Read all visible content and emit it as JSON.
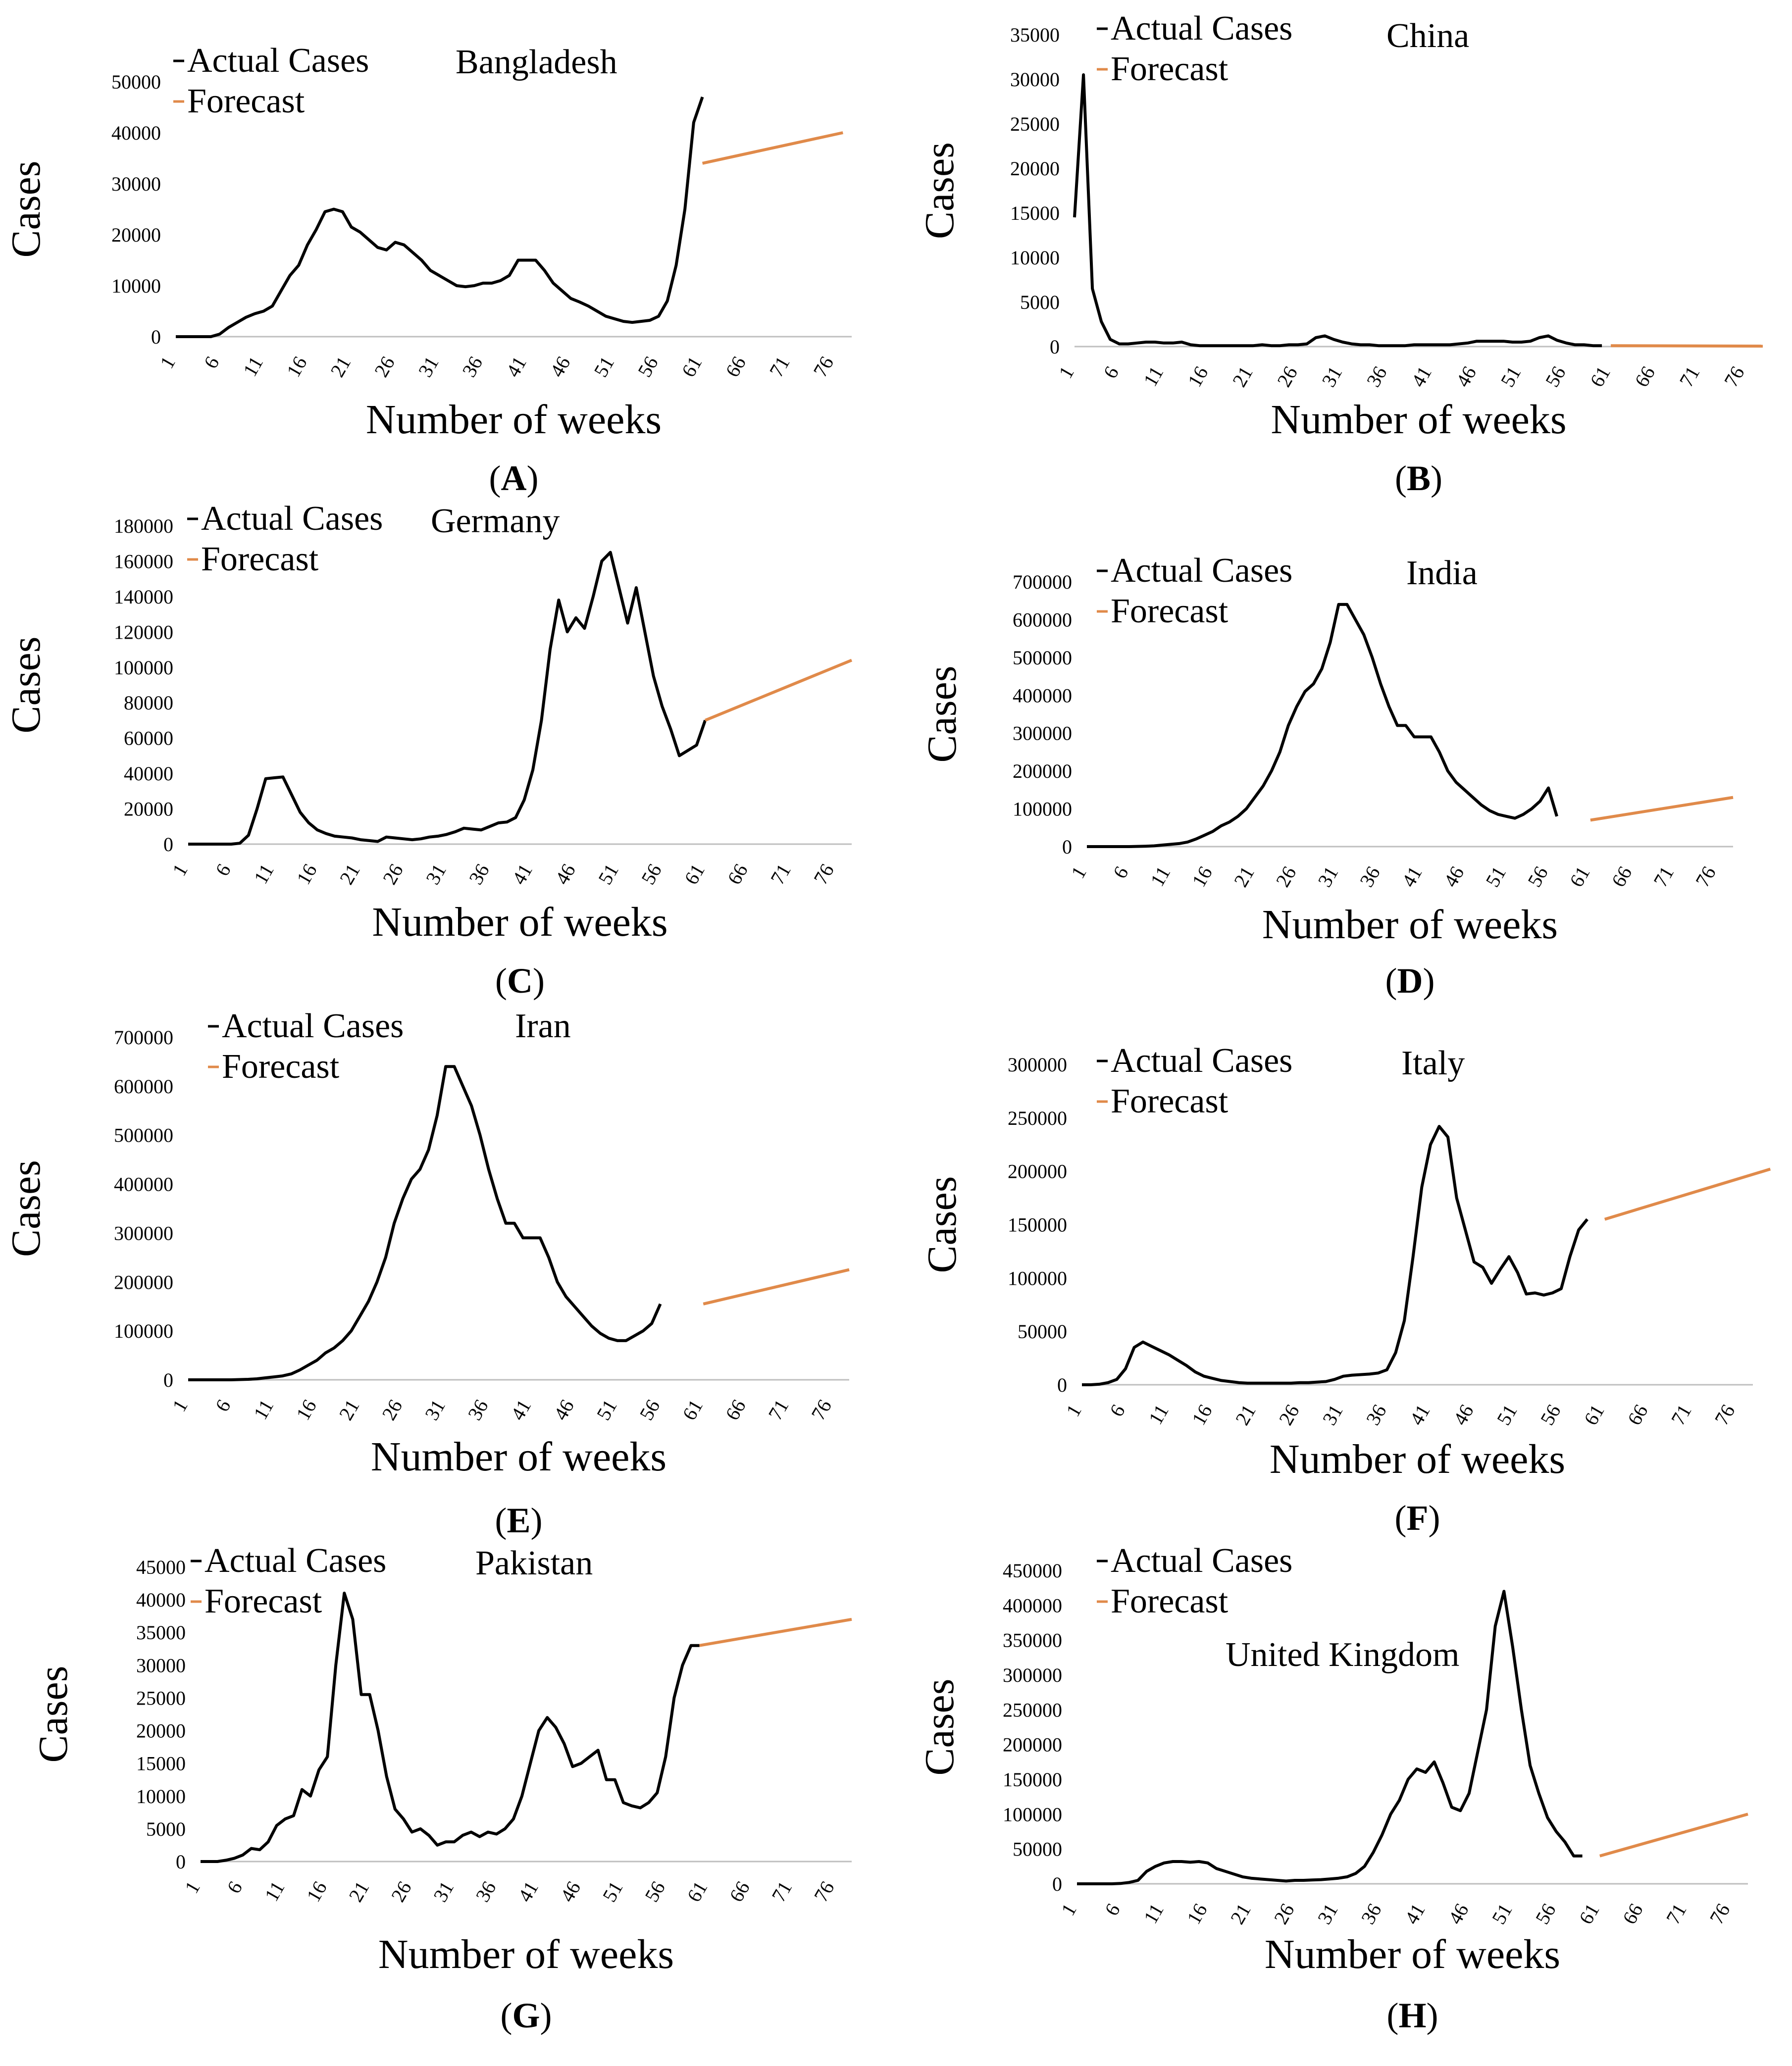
{
  "chart_data": [
    {
      "type": "line",
      "panel_label": "A",
      "title": "Bangladesh",
      "xlabel": "Number of weeks",
      "ylabel": "Cases",
      "ylim": [
        0,
        50000
      ],
      "yticks": [
        0,
        10000,
        20000,
        30000,
        40000,
        50000
      ],
      "xticks": [
        1,
        6,
        11,
        16,
        21,
        26,
        31,
        36,
        41,
        46,
        51,
        56,
        61,
        66,
        71,
        76
      ],
      "legend": [
        "Actual Cases",
        "Forecast"
      ],
      "colors": {
        "actual": "#000000",
        "forecast": "#E08A4A"
      },
      "series": [
        {
          "name": "Actual Cases",
          "x_start": 1,
          "values": [
            0,
            0,
            0,
            0,
            0,
            500,
            1800,
            2800,
            3800,
            4500,
            5000,
            6000,
            9000,
            12000,
            14000,
            18000,
            21000,
            24500,
            25000,
            24500,
            21500,
            20500,
            19000,
            17500,
            17000,
            18500,
            18000,
            16500,
            15000,
            13000,
            12000,
            11000,
            10000,
            9800,
            10000,
            10500,
            10500,
            11000,
            12000,
            15000,
            15000,
            15000,
            13000,
            10500,
            9000,
            7500,
            6800,
            6000,
            5000,
            4000,
            3500,
            3000,
            2800,
            3000,
            3200,
            4000,
            7000,
            14000,
            25000,
            42000,
            47000
          ]
        },
        {
          "name": "Forecast",
          "x_start": 61,
          "values": [
            34000,
            40000
          ],
          "x_end": 77
        }
      ]
    },
    {
      "type": "line",
      "panel_label": "B",
      "title": "China",
      "xlabel": "Number of weeks",
      "ylabel": "Cases",
      "ylim": [
        0,
        35000
      ],
      "yticks": [
        0,
        5000,
        10000,
        15000,
        20000,
        25000,
        30000,
        35000
      ],
      "xticks": [
        1,
        6,
        11,
        16,
        21,
        26,
        31,
        36,
        41,
        46,
        51,
        56,
        61,
        66,
        71,
        76
      ],
      "legend": [
        "Actual Cases",
        "Forecast"
      ],
      "colors": {
        "actual": "#000000",
        "forecast": "#E08A4A"
      },
      "series": [
        {
          "name": "Actual Cases",
          "x_start": 1,
          "values": [
            14500,
            30500,
            6500,
            2800,
            800,
            300,
            300,
            400,
            500,
            500,
            400,
            400,
            500,
            200,
            100,
            100,
            100,
            100,
            100,
            100,
            100,
            200,
            100,
            100,
            200,
            200,
            300,
            1000,
            1200,
            800,
            500,
            300,
            200,
            200,
            100,
            100,
            100,
            100,
            200,
            200,
            200,
            200,
            200,
            300,
            400,
            600,
            600,
            600,
            600,
            500,
            500,
            600,
            1000,
            1200,
            700,
            400,
            200,
            200,
            100,
            100
          ]
        },
        {
          "name": "Forecast",
          "x_start": 61,
          "values": [
            100,
            50
          ],
          "x_end": 78
        }
      ]
    },
    {
      "type": "line",
      "panel_label": "C",
      "title": "Germany",
      "xlabel": "Number of weeks",
      "ylabel": "Cases",
      "ylim": [
        0,
        180000
      ],
      "yticks": [
        0,
        20000,
        40000,
        60000,
        80000,
        100000,
        120000,
        140000,
        160000,
        180000
      ],
      "xticks": [
        1,
        6,
        11,
        16,
        21,
        26,
        31,
        36,
        41,
        46,
        51,
        56,
        61,
        66,
        71,
        76
      ],
      "legend": [
        "Actual Cases",
        "Forecast"
      ],
      "colors": {
        "actual": "#000000",
        "forecast": "#E08A4A"
      },
      "series": [
        {
          "name": "Actual Cases",
          "x_start": 1,
          "values": [
            0,
            0,
            0,
            0,
            0,
            0,
            500,
            5000,
            20000,
            37000,
            37500,
            38000,
            28000,
            18000,
            12000,
            8000,
            6000,
            4500,
            4000,
            3500,
            2500,
            2000,
            1500,
            4000,
            3500,
            3000,
            2500,
            3000,
            4000,
            4500,
            5500,
            7000,
            9000,
            8500,
            8000,
            10000,
            12000,
            12500,
            15000,
            25000,
            42000,
            70000,
            110000,
            138000,
            120000,
            128000,
            122000,
            140000,
            160000,
            165000,
            145000,
            125000,
            145000,
            120000,
            95000,
            78000,
            65000,
            50000,
            53000,
            56000,
            70000
          ]
        },
        {
          "name": "Forecast",
          "x_start": 61,
          "values": [
            70000,
            104000
          ],
          "x_end": 78
        }
      ]
    },
    {
      "type": "line",
      "panel_label": "D",
      "title": "India",
      "xlabel": "Number of weeks",
      "ylabel": "Cases",
      "ylim": [
        0,
        700000
      ],
      "yticks": [
        0,
        100000,
        200000,
        300000,
        400000,
        500000,
        600000,
        700000
      ],
      "xticks": [
        1,
        6,
        11,
        16,
        21,
        26,
        31,
        36,
        41,
        46,
        51,
        56,
        61,
        66,
        71,
        76
      ],
      "legend": [
        "Actual Cases",
        "Forecast"
      ],
      "colors": {
        "actual": "#000000",
        "forecast": "#E08A4A"
      },
      "series": [
        {
          "name": "Actual Cases",
          "x_start": 1,
          "values": [
            0,
            0,
            0,
            0,
            0,
            0,
            500,
            1000,
            2000,
            4000,
            6000,
            8000,
            12000,
            20000,
            30000,
            40000,
            55000,
            65000,
            80000,
            100000,
            130000,
            160000,
            200000,
            250000,
            320000,
            370000,
            410000,
            430000,
            470000,
            540000,
            640000,
            640000,
            600000,
            560000,
            500000,
            430000,
            370000,
            320000,
            320000,
            290000,
            290000,
            290000,
            250000,
            200000,
            170000,
            150000,
            130000,
            110000,
            95000,
            85000,
            80000,
            75000,
            85000,
            100000,
            120000,
            155000,
            80000
          ]
        },
        {
          "name": "Forecast",
          "x_start": 61,
          "values": [
            70000,
            130000
          ],
          "x_end": 78
        }
      ]
    },
    {
      "type": "line",
      "panel_label": "E",
      "title": "Iran",
      "xlabel": "Number of weeks",
      "ylabel": "Cases",
      "ylim": [
        0,
        700000
      ],
      "yticks": [
        0,
        100000,
        200000,
        300000,
        400000,
        500000,
        600000,
        700000
      ],
      "xticks": [
        1,
        6,
        11,
        16,
        21,
        26,
        31,
        36,
        41,
        46,
        51,
        56,
        61,
        66,
        71,
        76
      ],
      "legend": [
        "Actual Cases",
        "Forecast"
      ],
      "colors": {
        "actual": "#000000",
        "forecast": "#E08A4A"
      },
      "series": [
        {
          "name": "Actual Cases",
          "x_start": 1,
          "values": [
            0,
            0,
            0,
            0,
            0,
            0,
            500,
            1000,
            2000,
            4000,
            6000,
            8000,
            12000,
            20000,
            30000,
            40000,
            55000,
            65000,
            80000,
            100000,
            130000,
            160000,
            200000,
            250000,
            320000,
            370000,
            410000,
            430000,
            470000,
            540000,
            640000,
            640000,
            600000,
            560000,
            500000,
            430000,
            370000,
            320000,
            320000,
            290000,
            290000,
            290000,
            250000,
            200000,
            170000,
            150000,
            130000,
            110000,
            95000,
            85000,
            80000,
            80000,
            90000,
            100000,
            115000,
            155000
          ]
        },
        {
          "name": "Forecast",
          "x_start": 61,
          "values": [
            155000,
            225000
          ],
          "x_end": 78
        }
      ]
    },
    {
      "type": "line",
      "panel_label": "F",
      "title": "Italy",
      "xlabel": "Number of weeks",
      "ylabel": "Cases",
      "ylim": [
        0,
        300000
      ],
      "yticks": [
        0,
        50000,
        100000,
        150000,
        200000,
        250000,
        300000
      ],
      "xticks": [
        1,
        6,
        11,
        16,
        21,
        26,
        31,
        36,
        41,
        46,
        51,
        56,
        61,
        66,
        71,
        76
      ],
      "legend": [
        "Actual Cases",
        "Forecast"
      ],
      "colors": {
        "actual": "#000000",
        "forecast": "#E08A4A"
      },
      "series": [
        {
          "name": "Actual Cases",
          "x_start": 1,
          "values": [
            0,
            0,
            500,
            2000,
            5000,
            15000,
            35000,
            40000,
            36000,
            32000,
            28000,
            23000,
            18000,
            12000,
            8000,
            6000,
            4000,
            3000,
            2000,
            1500,
            1500,
            1500,
            1500,
            1500,
            1500,
            2000,
            2000,
            2500,
            3000,
            5000,
            8000,
            9000,
            9500,
            10000,
            11000,
            14000,
            30000,
            60000,
            120000,
            185000,
            225000,
            242000,
            232000,
            175000,
            145000,
            115000,
            110000,
            95000,
            108000,
            120000,
            105000,
            85000,
            86000,
            84000,
            86000,
            90000,
            120000,
            145000,
            155000
          ]
        },
        {
          "name": "Forecast",
          "x_start": 61,
          "values": [
            155000,
            202000
          ],
          "x_end": 80
        }
      ]
    },
    {
      "type": "line",
      "panel_label": "G",
      "title": "Pakistan",
      "xlabel": "Number of weeks",
      "ylabel": "Cases",
      "ylim": [
        0,
        45000
      ],
      "yticks": [
        0,
        5000,
        10000,
        15000,
        20000,
        25000,
        30000,
        35000,
        40000,
        45000
      ],
      "xticks": [
        1,
        6,
        11,
        16,
        21,
        26,
        31,
        36,
        41,
        46,
        51,
        56,
        61,
        66,
        71,
        76
      ],
      "legend": [
        "Actual Cases",
        "Forecast"
      ],
      "colors": {
        "actual": "#000000",
        "forecast": "#E08A4A"
      },
      "series": [
        {
          "name": "Actual Cases",
          "x_start": 1,
          "values": [
            0,
            0,
            0,
            200,
            500,
            1000,
            2000,
            1800,
            3000,
            5500,
            6500,
            7000,
            11000,
            10000,
            14000,
            16000,
            30000,
            41000,
            37000,
            25500,
            25500,
            20000,
            13000,
            8000,
            6500,
            4500,
            5000,
            4000,
            2500,
            3000,
            3000,
            4000,
            4500,
            3800,
            4500,
            4200,
            5000,
            6500,
            10000,
            15000,
            20000,
            22000,
            20500,
            18000,
            14500,
            15000,
            16000,
            17000,
            12500,
            12500,
            9000,
            8500,
            8200,
            9000,
            10500,
            16000,
            25000,
            30000,
            33000,
            33000
          ]
        },
        {
          "name": "Forecast",
          "x_start": 60,
          "values": [
            33000,
            37000
          ],
          "x_end": 78
        }
      ]
    },
    {
      "type": "line",
      "panel_label": "H",
      "title": "United Kingdom",
      "xlabel": "Number of weeks",
      "ylabel": "Cases",
      "ylim": [
        0,
        450000
      ],
      "yticks": [
        0,
        50000,
        100000,
        150000,
        200000,
        250000,
        300000,
        350000,
        400000,
        450000
      ],
      "xticks": [
        1,
        6,
        11,
        16,
        21,
        26,
        31,
        36,
        41,
        46,
        51,
        56,
        61,
        66,
        71,
        76
      ],
      "legend": [
        "Actual Cases",
        "Forecast"
      ],
      "colors": {
        "actual": "#000000",
        "forecast": "#E08A4A"
      },
      "series": [
        {
          "name": "Actual Cases",
          "x_start": 1,
          "values": [
            0,
            0,
            0,
            0,
            0,
            500,
            2000,
            5000,
            18000,
            25000,
            30000,
            32000,
            32000,
            31000,
            32000,
            30000,
            22000,
            18000,
            14000,
            10000,
            8000,
            7000,
            6000,
            5000,
            4000,
            5000,
            5000,
            5500,
            6000,
            7000,
            8000,
            10000,
            15000,
            25000,
            45000,
            70000,
            100000,
            120000,
            150000,
            165000,
            160000,
            175000,
            145000,
            110000,
            105000,
            130000,
            190000,
            250000,
            370000,
            420000,
            340000,
            250000,
            170000,
            130000,
            95000,
            75000,
            60000,
            40000,
            40000
          ]
        },
        {
          "name": "Forecast",
          "x_start": 61,
          "values": [
            40000,
            100000
          ],
          "x_end": 78
        }
      ]
    }
  ]
}
